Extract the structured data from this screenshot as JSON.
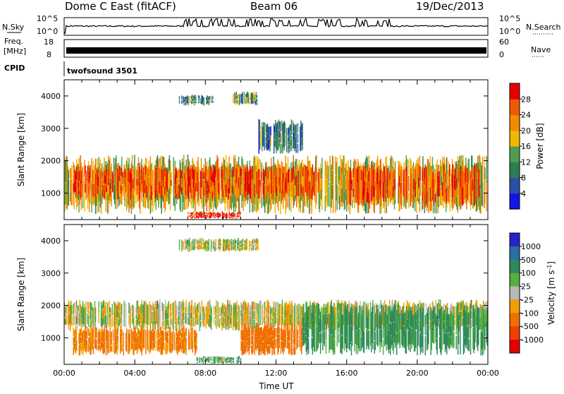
{
  "header": {
    "title": "Dome C East (fitACF)",
    "beam": "Beam 06",
    "date": "19/Dec/2013"
  },
  "strip_panels": {
    "nsky_label": "N.Sky",
    "nsky_ticks": [
      "10^5",
      "10^0"
    ],
    "nsearch_label": "N.Search",
    "nsearch_ticks": [
      "10^5",
      "10^0"
    ],
    "freq_label": "Freq.",
    "freq_unit": "[MHz]",
    "freq_ticks": [
      "18",
      "8"
    ],
    "nave_label": "Nave",
    "nave_ticks": [
      "60",
      "0"
    ],
    "cpid_label": "CPID",
    "cpid_value": "twofsound 3501"
  },
  "chart_data": [
    {
      "type": "heatmap",
      "panel": "power",
      "title": "",
      "xlabel": "",
      "ylabel": "Slant Range [km]",
      "xlim": [
        0,
        24
      ],
      "ylim": [
        180,
        4500
      ],
      "yticks": [
        1000,
        2000,
        3000,
        4000
      ],
      "colorbar": {
        "label": "Power [dB]",
        "ticks": [
          "4",
          "8",
          "12",
          "16",
          "20",
          "24",
          "28"
        ],
        "levels": [
          0,
          4,
          8,
          12,
          16,
          20,
          24,
          28,
          32
        ],
        "colors": [
          "#1414e6",
          "#2a4fa8",
          "#2e7d52",
          "#4f9e4f",
          "#f0b800",
          "#f58a00",
          "#f05a00",
          "#e60000"
        ]
      },
      "regions": [
        {
          "t0": 0.0,
          "t1": 24.0,
          "r0": 350,
          "r1": 2200,
          "level": 18
        },
        {
          "t0": 0.5,
          "t1": 14.5,
          "r0": 800,
          "r1": 1900,
          "level": 26
        },
        {
          "t0": 16.0,
          "t1": 23.5,
          "r0": 600,
          "r1": 1900,
          "level": 26
        },
        {
          "t0": 7.0,
          "t1": 10.0,
          "r0": 200,
          "r1": 450,
          "level": 30
        },
        {
          "t0": 6.5,
          "t1": 8.5,
          "r0": 3700,
          "r1": 4050,
          "level": 10
        },
        {
          "t0": 9.5,
          "t1": 11.0,
          "r0": 3700,
          "r1": 4150,
          "level": 12
        },
        {
          "t0": 11.0,
          "t1": 13.5,
          "r0": 2200,
          "r1": 3300,
          "level": 10
        }
      ]
    },
    {
      "type": "heatmap",
      "panel": "velocity",
      "title": "",
      "xlabel": "Time UT",
      "ylabel": "Slant Range [km]",
      "xlim": [
        0,
        24
      ],
      "ylim": [
        180,
        4500
      ],
      "xticks": [
        "00:00",
        "04:00",
        "08:00",
        "12:00",
        "16:00",
        "20:00",
        "00:00"
      ],
      "yticks": [
        1000,
        2000,
        3000,
        4000
      ],
      "colorbar": {
        "label": "Velocity [m s^-1]",
        "ticks": [
          "1000",
          "500",
          "100",
          "25",
          "-25",
          "-100",
          "-500",
          "-1000"
        ],
        "colors": [
          "#2424c8",
          "#2e6ba8",
          "#2e8a5a",
          "#55b040",
          "#b8b8b8",
          "#f0a000",
          "#f07000",
          "#f04000",
          "#e60000"
        ]
      },
      "regions": [
        {
          "t0": 0.0,
          "t1": 24.0,
          "r0": 1200,
          "r1": 2200,
          "velocity": 0
        },
        {
          "t0": 0.5,
          "t1": 7.5,
          "r0": 450,
          "r1": 1400,
          "velocity": -150
        },
        {
          "t0": 10.0,
          "t1": 13.5,
          "r0": 450,
          "r1": 1500,
          "velocity": -300
        },
        {
          "t0": 13.5,
          "t1": 24.0,
          "r0": 450,
          "r1": 2100,
          "velocity": 150
        },
        {
          "t0": 7.5,
          "t1": 10.0,
          "r0": 200,
          "r1": 450,
          "velocity": 80
        },
        {
          "t0": 6.5,
          "t1": 11.0,
          "r0": 3650,
          "r1": 4100,
          "velocity": 0
        }
      ]
    }
  ]
}
